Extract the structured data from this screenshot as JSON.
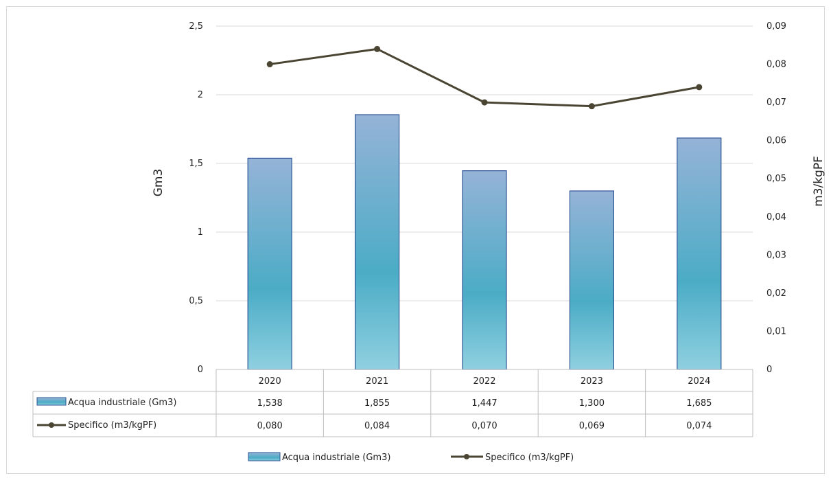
{
  "chart_data": {
    "type": "bar",
    "categories": [
      "2020",
      "2021",
      "2022",
      "2023",
      "2024"
    ],
    "series": [
      {
        "name": "Acqua industriale (Gm3)",
        "type": "bar",
        "axis": "left",
        "values": [
          1.538,
          1.855,
          1.447,
          1.3,
          1.685
        ],
        "display": [
          "1,538",
          "1,855",
          "1,447",
          "1,300",
          "1,685"
        ]
      },
      {
        "name": "Specifico (m3/kgPF)",
        "type": "line",
        "axis": "right",
        "values": [
          0.08,
          0.084,
          0.07,
          0.069,
          0.074
        ],
        "display": [
          "0,080",
          "0,084",
          "0,070",
          "0,069",
          "0,074"
        ]
      }
    ],
    "ylabel": "Gm3",
    "y2label": "m3/kgPF",
    "ylim": [
      0,
      2.5
    ],
    "y2lim": [
      0,
      0.09
    ],
    "yticks": [
      "0",
      "0,5",
      "1",
      "1,5",
      "2",
      "2,5"
    ],
    "y2ticks": [
      "0",
      "0,01",
      "0,02",
      "0,03",
      "0,04",
      "0,05",
      "0,06",
      "0,07",
      "0,08",
      "0,09"
    ],
    "grid": true,
    "data_table": true,
    "legend_position": "bottom",
    "colors": {
      "bar_top": "#95b3d7",
      "bar_mid": "#4bacc6",
      "bar_bottom": "#8fd0e0",
      "bar_edge": "#2f5597",
      "line": "#4a4532",
      "grid": "#d9d9d9",
      "table_border": "#bfbfbf"
    }
  }
}
